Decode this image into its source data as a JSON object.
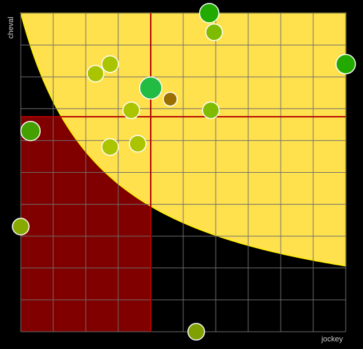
{
  "chart_data": {
    "type": "scatter",
    "xlabel": "jockey",
    "ylabel": "cheval",
    "xlim": [
      0,
      10
    ],
    "ylim": [
      0,
      10
    ],
    "grid": true,
    "legend": "none",
    "quadrant_split": {
      "x": 4,
      "y": 6.75
    },
    "quadrants": {
      "top_right": "#006400",
      "bottom_left": "#800000",
      "other": "#000000"
    },
    "split_line_color": "#b00000",
    "curve": {
      "type": "hyperbola",
      "k": 2.6,
      "x_start": 0,
      "color": "#ffe14d",
      "edge": "#ffee00"
    },
    "points": [
      {
        "x": 5.8,
        "y": 10.0,
        "r": 14,
        "color": "#22aa00"
      },
      {
        "x": 5.95,
        "y": 9.4,
        "r": 12,
        "color": "#7fbb00"
      },
      {
        "x": 10.0,
        "y": 8.4,
        "r": 14,
        "color": "#22aa00"
      },
      {
        "x": 2.75,
        "y": 8.4,
        "r": 12,
        "color": "#aac400"
      },
      {
        "x": 2.3,
        "y": 8.1,
        "r": 12,
        "color": "#aac400"
      },
      {
        "x": 4.0,
        "y": 7.65,
        "r": 16,
        "color": "#22bb44"
      },
      {
        "x": 4.6,
        "y": 7.3,
        "r": 10,
        "color": "#9a7000"
      },
      {
        "x": 3.4,
        "y": 6.95,
        "r": 12,
        "color": "#aac400"
      },
      {
        "x": 5.85,
        "y": 6.95,
        "r": 12,
        "color": "#7fbb00"
      },
      {
        "x": 0.3,
        "y": 6.3,
        "r": 14,
        "color": "#44a000"
      },
      {
        "x": 2.75,
        "y": 5.8,
        "r": 12,
        "color": "#aac400"
      },
      {
        "x": 3.6,
        "y": 5.9,
        "r": 12,
        "color": "#aac400"
      },
      {
        "x": 0.0,
        "y": 3.3,
        "r": 12,
        "color": "#88aa00"
      },
      {
        "x": 5.4,
        "y": 0.0,
        "r": 12,
        "color": "#7fa000"
      }
    ]
  }
}
